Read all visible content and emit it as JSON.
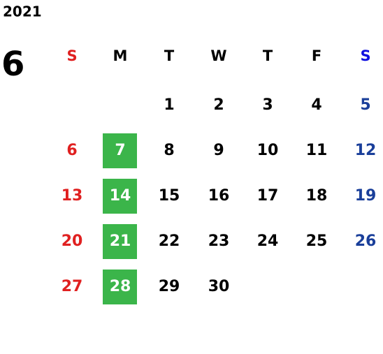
{
  "year": "2021",
  "month": "6",
  "weekdays": [
    "S",
    "M",
    "T",
    "W",
    "T",
    "F",
    "S"
  ],
  "weeks": [
    [
      null,
      null,
      1,
      2,
      3,
      4,
      5
    ],
    [
      6,
      7,
      8,
      9,
      10,
      11,
      12
    ],
    [
      13,
      14,
      15,
      16,
      17,
      18,
      19
    ],
    [
      20,
      21,
      22,
      23,
      24,
      25,
      26
    ],
    [
      27,
      28,
      29,
      30,
      null,
      null,
      null
    ]
  ],
  "highlighted_days": [
    7,
    14,
    21,
    28
  ],
  "highlight_color": "#3bb54a",
  "sunday_color": "#e02020",
  "saturday_header_color": "#1010e0",
  "saturday_color": "#1a3f9a"
}
